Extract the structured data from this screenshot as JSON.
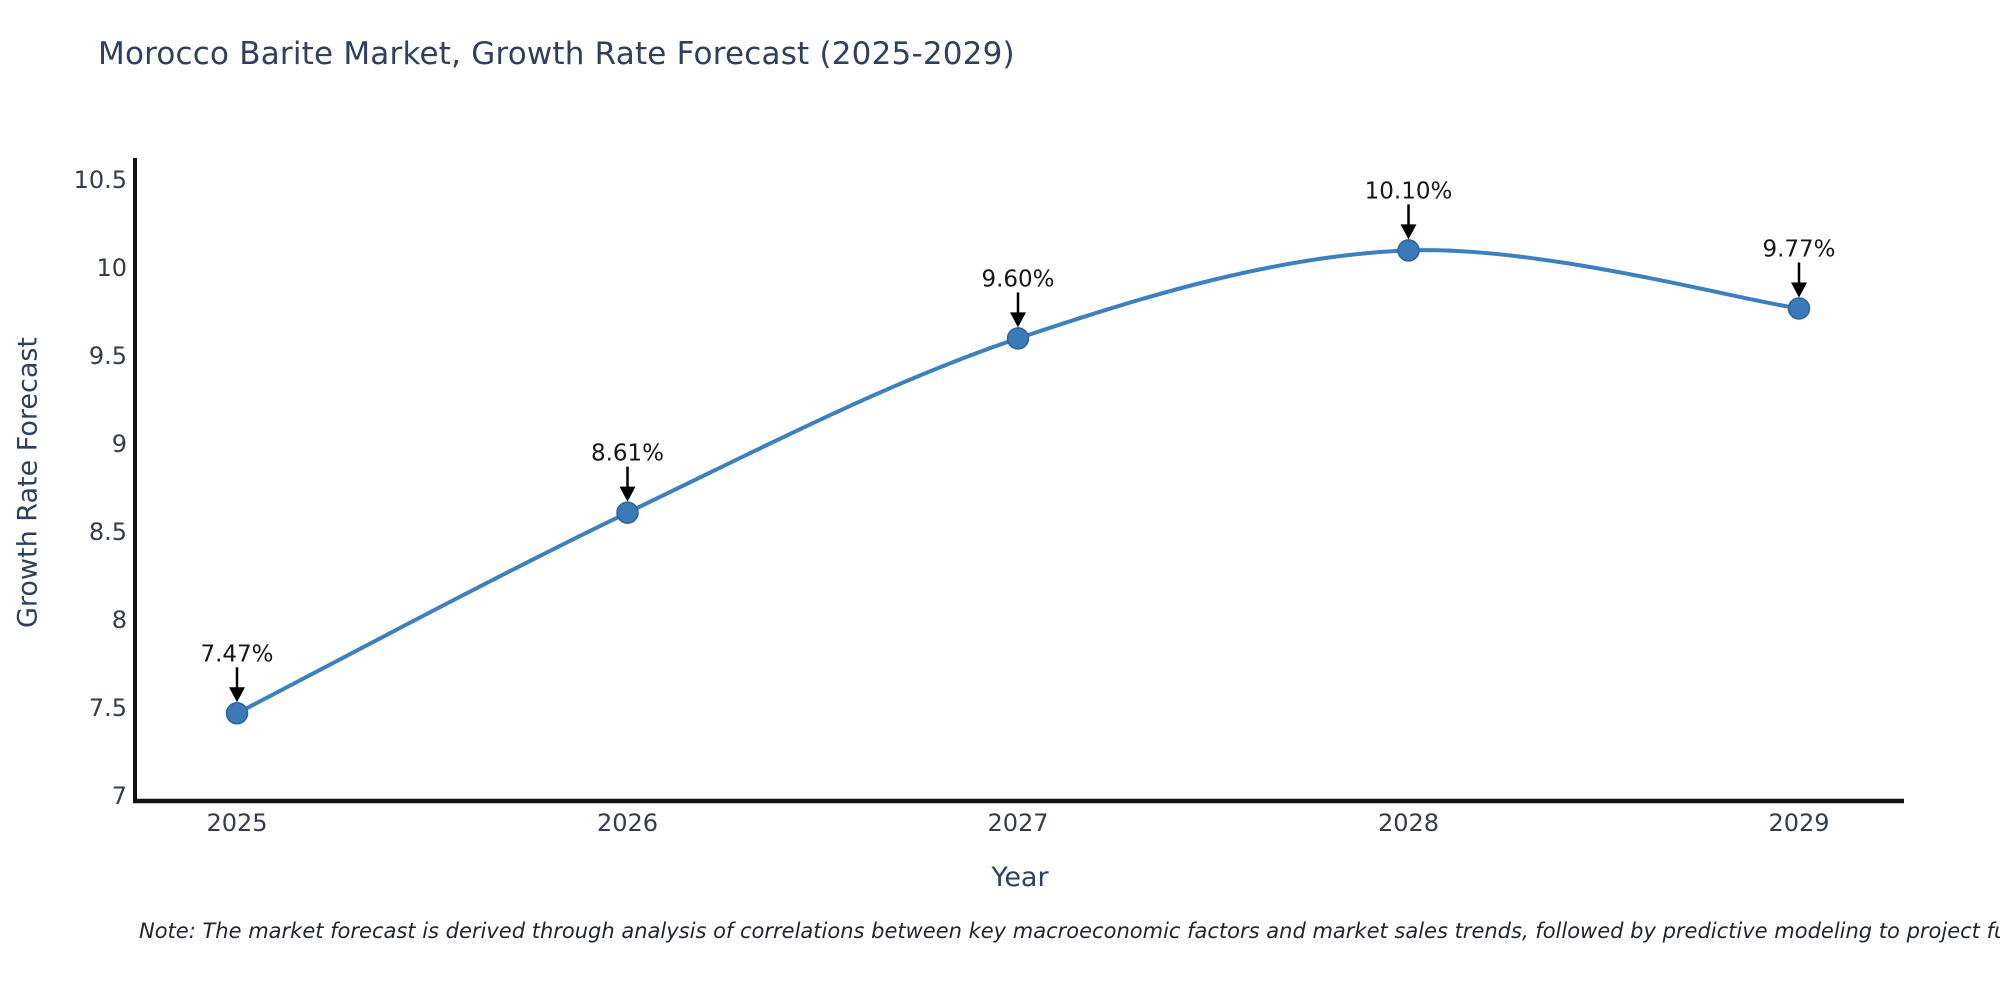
{
  "title": "Morocco Barite Market, Growth Rate Forecast (2025-2029)",
  "note": "Note: The market forecast is derived through analysis of correlations between key macroeconomic factors and market sales trends, followed by predictive modeling to project future sales",
  "chart_data": {
    "type": "line",
    "title": "Morocco Barite Market, Growth Rate Forecast (2025-2029)",
    "xlabel": "Year",
    "ylabel": "Growth Rate Forecast",
    "categories": [
      "2025",
      "2026",
      "2027",
      "2028",
      "2029"
    ],
    "values": [
      7.47,
      8.61,
      9.6,
      10.1,
      9.77
    ],
    "point_labels": [
      "7.47%",
      "8.61%",
      "9.60%",
      "10.10%",
      "9.77%"
    ],
    "yticks": [
      7,
      7.5,
      8,
      8.5,
      9,
      9.5,
      10,
      10.5
    ],
    "ytick_labels": [
      "7",
      "7.5",
      "8",
      "8.5",
      "9",
      "9.5",
      "10",
      "10.5"
    ],
    "ylim": [
      7,
      10.6
    ],
    "grid": false,
    "legend": "none",
    "annotations_have_down_arrows": true,
    "colors": {
      "line": "#3c80c0",
      "marker_fill": "#3a7ab8",
      "marker_edge": "#2d6398",
      "axis_spine": "#111111",
      "arrow": "#000000",
      "tick_text": "#353b4f",
      "title_text": "#2f3f5f",
      "annotation_text": "#15161c"
    }
  }
}
